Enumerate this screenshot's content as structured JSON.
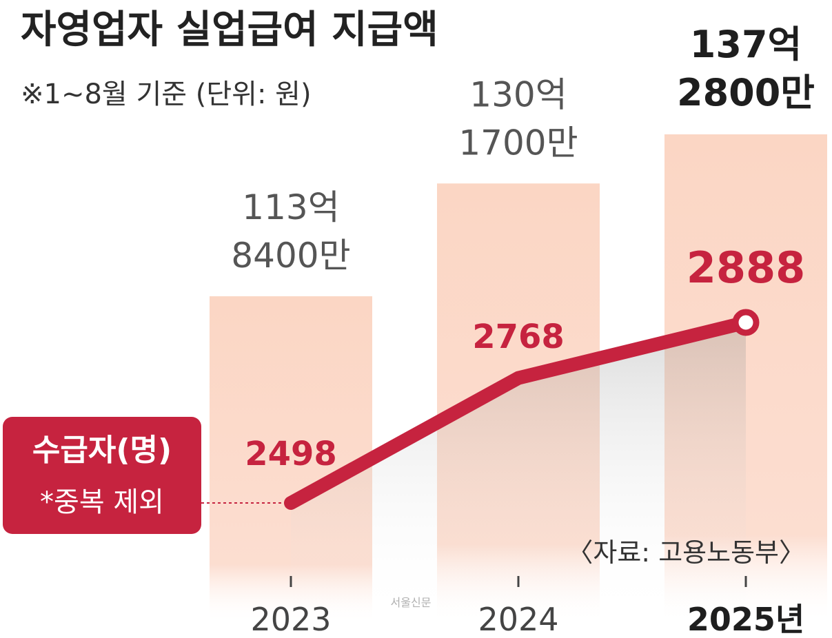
{
  "chart_data": {
    "type": "bar",
    "title": "자영업자 실업급여 지급액",
    "subtitle": "※1~8월 기준 (단위: 원)",
    "categories": [
      "2023",
      "2024",
      "2025년"
    ],
    "series": [
      {
        "name": "지급액",
        "values": [
          11384000000,
          13017000000,
          13728000000
        ],
        "value_labels": [
          [
            "113억",
            "8400만"
          ],
          [
            "130억",
            "1700만"
          ],
          [
            "137억",
            "2800만"
          ]
        ]
      },
      {
        "name": "수급자(명)",
        "type": "line",
        "values": [
          2498,
          2768,
          2888
        ],
        "value_labels": [
          "2498",
          "2768",
          "2888"
        ]
      }
    ],
    "legend": {
      "label": "수급자(명)",
      "note": "*중복 제외",
      "placement": "left"
    },
    "source": "〈자료: 고용노동부〉",
    "watermark": "서울신문",
    "colors": {
      "bar": "#fbd6c4",
      "line": "#c6233f",
      "title": "#222222",
      "label": "#555555",
      "highlight_label": "#1e1e1e"
    }
  }
}
